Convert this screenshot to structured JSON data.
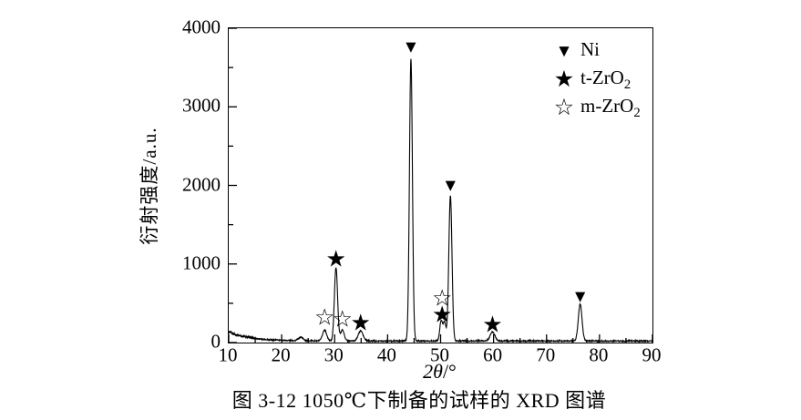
{
  "figure": {
    "caption": "图 3-12 1050℃下制备的试样的 XRD 图谱"
  },
  "chart_data": {
    "type": "line",
    "title": "",
    "xlabel_italic": "2θ",
    "xlabel_rest": "/°",
    "xlabel_full": "2θ/°",
    "ylabel": "衍射强度/a.u.",
    "xlim": [
      10,
      90
    ],
    "ylim": [
      0,
      4000
    ],
    "grid": false,
    "line_color": "#000000",
    "background_color": "#ffffff",
    "x_ticks": [
      {
        "v": 10,
        "label": "10"
      },
      {
        "v": 20,
        "label": "20"
      },
      {
        "v": 30,
        "label": "30"
      },
      {
        "v": 40,
        "label": "40"
      },
      {
        "v": 50,
        "label": "50"
      },
      {
        "v": 60,
        "label": "60"
      },
      {
        "v": 70,
        "label": "70"
      },
      {
        "v": 80,
        "label": "80"
      },
      {
        "v": 90,
        "label": "90"
      }
    ],
    "x_minor_step": 5,
    "y_ticks": [
      {
        "v": 0,
        "label": "0"
      },
      {
        "v": 1000,
        "label": "1000"
      },
      {
        "v": 2000,
        "label": "2000"
      },
      {
        "v": 3000,
        "label": "3000"
      },
      {
        "v": 4000,
        "label": "4000"
      }
    ],
    "y_minor_step": 500,
    "background": {
      "base": 20,
      "amp": 115,
      "decay": 4.0,
      "noise": 9
    },
    "peaks": [
      {
        "two_theta": 23.6,
        "intensity": 45,
        "sigma": 0.45,
        "phase": "unassigned"
      },
      {
        "two_theta": 28.1,
        "intensity": 140,
        "sigma": 0.38,
        "phase": "m-ZrO2"
      },
      {
        "two_theta": 30.25,
        "intensity": 935,
        "sigma": 0.3,
        "phase": "t-ZrO2"
      },
      {
        "two_theta": 31.45,
        "intensity": 140,
        "sigma": 0.35,
        "phase": "m-ZrO2"
      },
      {
        "two_theta": 34.9,
        "intensity": 130,
        "sigma": 0.45,
        "phase": "t-ZrO2"
      },
      {
        "two_theta": 44.4,
        "intensity": 3590,
        "sigma": 0.28,
        "phase": "Ni"
      },
      {
        "two_theta": 50.1,
        "intensity": 255,
        "sigma": 0.26,
        "phase": "m-ZrO2 + t-ZrO2"
      },
      {
        "two_theta": 50.75,
        "intensity": 235,
        "sigma": 0.26,
        "phase": "t-ZrO2"
      },
      {
        "two_theta": 51.85,
        "intensity": 1850,
        "sigma": 0.3,
        "phase": "Ni"
      },
      {
        "two_theta": 59.8,
        "intensity": 115,
        "sigma": 0.45,
        "phase": "t-ZrO2"
      },
      {
        "two_theta": 76.35,
        "intensity": 470,
        "sigma": 0.35,
        "phase": "Ni"
      }
    ],
    "markers": [
      {
        "glyph": "▼",
        "kind": "tri",
        "phase": "Ni",
        "two_theta": 44.4,
        "level": 3755
      },
      {
        "glyph": "▼",
        "kind": "tri",
        "phase": "Ni",
        "two_theta": 51.85,
        "level": 1995
      },
      {
        "glyph": "▼",
        "kind": "tri",
        "phase": "Ni",
        "two_theta": 76.35,
        "level": 585
      },
      {
        "glyph": "★",
        "kind": "star",
        "phase": "t-ZrO2",
        "two_theta": 30.25,
        "level": 1050
      },
      {
        "glyph": "★",
        "kind": "star",
        "phase": "t-ZrO2",
        "two_theta": 34.9,
        "level": 245
      },
      {
        "glyph": "★",
        "kind": "star",
        "phase": "t-ZrO2",
        "two_theta": 50.3,
        "level": 345
      },
      {
        "glyph": "★",
        "kind": "star",
        "phase": "t-ZrO2",
        "two_theta": 59.8,
        "level": 225
      },
      {
        "glyph": "☆",
        "kind": "ostar",
        "phase": "m-ZrO2",
        "two_theta": 28.1,
        "level": 310
      },
      {
        "glyph": "☆",
        "kind": "ostar",
        "phase": "m-ZrO2",
        "two_theta": 31.45,
        "level": 295
      },
      {
        "glyph": "☆",
        "kind": "ostar",
        "phase": "m-ZrO2",
        "two_theta": 50.3,
        "level": 560
      }
    ],
    "legend": {
      "position": "top-right",
      "items": [
        {
          "marker": "▼",
          "marker_name": "filled-triangle-down-icon",
          "label_main": "Ni",
          "label_sub": ""
        },
        {
          "marker": "★",
          "marker_name": "filled-star-icon",
          "label_main": "t-ZrO",
          "label_sub": "2"
        },
        {
          "marker": "☆",
          "marker_name": "open-star-icon",
          "label_main": "m-ZrO",
          "label_sub": "2"
        }
      ]
    }
  }
}
